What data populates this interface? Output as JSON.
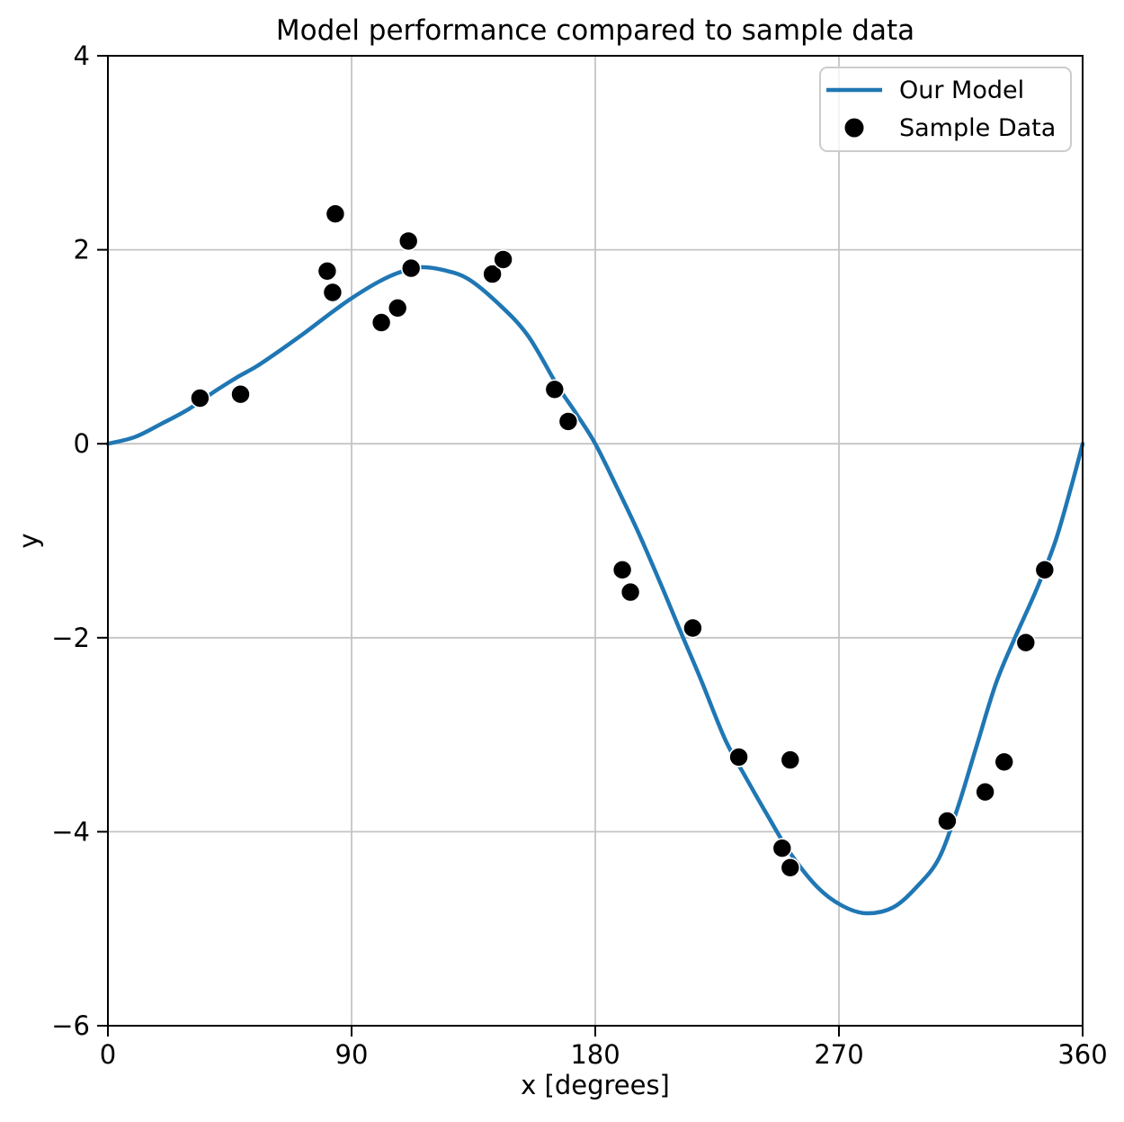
{
  "chart_data": {
    "type": "line+scatter",
    "title": "Model performance compared to sample data",
    "xlabel": "x [degrees]",
    "ylabel": "y",
    "xlim": [
      0,
      360
    ],
    "ylim": [
      -6,
      4
    ],
    "grid": true,
    "xticks": [
      {
        "v": 0,
        "label": "0"
      },
      {
        "v": 90,
        "label": "90"
      },
      {
        "v": 180,
        "label": "180"
      },
      {
        "v": 270,
        "label": "270"
      },
      {
        "v": 360,
        "label": "360"
      }
    ],
    "yticks": [
      {
        "v": 4,
        "label": "4"
      },
      {
        "v": 2,
        "label": "2"
      },
      {
        "v": 0,
        "label": "0"
      },
      {
        "v": -2,
        "label": "−2"
      },
      {
        "v": -4,
        "label": "−4"
      },
      {
        "v": -6,
        "label": "−6"
      }
    ],
    "colors": {
      "model": "#1f77b4",
      "data": "#000000",
      "grid": "#c4c4c4",
      "spine": "#000000",
      "legend_border": "#cccccc",
      "background": "#ffffff"
    },
    "legend": {
      "position": "upper right",
      "entries": [
        {
          "label": "Our Model",
          "type": "line"
        },
        {
          "label": "Sample Data",
          "type": "marker"
        }
      ]
    },
    "series": [
      {
        "name": "Our Model",
        "type": "line",
        "color": "#1f77b4",
        "line_width": 4.5,
        "points": [
          [
            0,
            0.0
          ],
          [
            10,
            0.07
          ],
          [
            20,
            0.21
          ],
          [
            30,
            0.36
          ],
          [
            40,
            0.55
          ],
          [
            48,
            0.69
          ],
          [
            55,
            0.8
          ],
          [
            64,
            0.97
          ],
          [
            73,
            1.15
          ],
          [
            82,
            1.34
          ],
          [
            90,
            1.5
          ],
          [
            100,
            1.67
          ],
          [
            108,
            1.77
          ],
          [
            116,
            1.82
          ],
          [
            124,
            1.79
          ],
          [
            133,
            1.7
          ],
          [
            144,
            1.45
          ],
          [
            155,
            1.12
          ],
          [
            166,
            0.6
          ],
          [
            173,
            0.31
          ],
          [
            180,
            0.0
          ],
          [
            188,
            -0.45
          ],
          [
            196,
            -0.92
          ],
          [
            205,
            -1.5
          ],
          [
            212,
            -1.97
          ],
          [
            219,
            -2.43
          ],
          [
            228,
            -3.05
          ],
          [
            236,
            -3.46
          ],
          [
            244,
            -3.85
          ],
          [
            252,
            -4.22
          ],
          [
            262,
            -4.57
          ],
          [
            271,
            -4.76
          ],
          [
            280,
            -4.84
          ],
          [
            290,
            -4.78
          ],
          [
            299,
            -4.56
          ],
          [
            307,
            -4.27
          ],
          [
            314,
            -3.74
          ],
          [
            321,
            -3.1
          ],
          [
            328,
            -2.47
          ],
          [
            335,
            -2.0
          ],
          [
            343,
            -1.5
          ],
          [
            350,
            -1.0
          ],
          [
            356,
            -0.42
          ],
          [
            360,
            0.0
          ]
        ]
      },
      {
        "name": "Sample Data",
        "type": "scatter",
        "color": "#000000",
        "marker_radius": 10.5,
        "points": [
          [
            34,
            0.47
          ],
          [
            49,
            0.51
          ],
          [
            81,
            1.78
          ],
          [
            83,
            1.56
          ],
          [
            84,
            2.37
          ],
          [
            101,
            1.25
          ],
          [
            107,
            1.4
          ],
          [
            111,
            2.09
          ],
          [
            112,
            1.81
          ],
          [
            142,
            1.75
          ],
          [
            146,
            1.9
          ],
          [
            165,
            0.56
          ],
          [
            170,
            0.23
          ],
          [
            190,
            -1.3
          ],
          [
            193,
            -1.53
          ],
          [
            216,
            -1.9
          ],
          [
            233,
            -3.23
          ],
          [
            249,
            -4.17
          ],
          [
            252,
            -3.26
          ],
          [
            252,
            -4.37
          ],
          [
            310,
            -3.89
          ],
          [
            324,
            -3.59
          ],
          [
            331,
            -3.28
          ],
          [
            339,
            -2.05
          ],
          [
            346,
            -1.3
          ]
        ]
      }
    ]
  }
}
